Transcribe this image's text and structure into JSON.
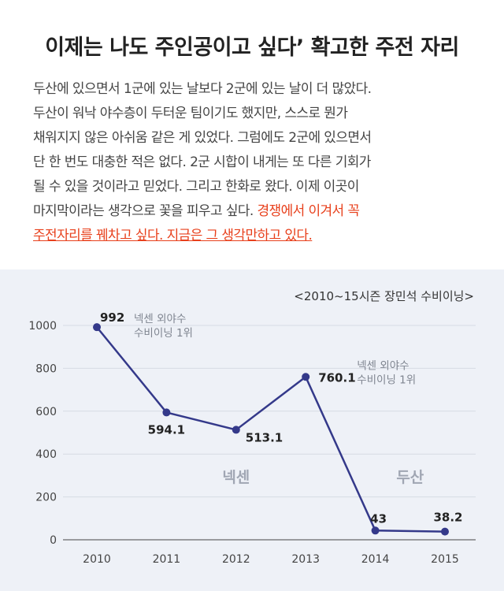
{
  "headline": "이제는 나도 주인공이고 싶다’ 확고한 주전 자리",
  "quote_lines": [
    "두산에 있으면서 1군에 있는 날보다 2군에 있는 날이 더 많았다.",
    "두산이 워낙 야수층이 두터운 팀이기도 했지만, 스스로 뭔가",
    "채워지지 않은 아쉬움 같은 게 있었다.  그럼에도 2군에 있으면서",
    "단 한 번도 대충한 적은 없다. 2군 시합이 내게는 또 다른 기회가",
    "될 수 있을 것이라고 믿었다.  그리고 한화로 왔다. 이제 이곳이"
  ],
  "quote_line6_plain": "마지막이라는 생각으로 꽃을 피우고 싶다. ",
  "quote_line6_highlight": "경쟁에서 이겨서 꼭",
  "quote_line7_highlight": "주전자리를 꿰차고 싶다. 지금은 그 생각만하고 있다.",
  "colors": {
    "line": "#34398a",
    "highlight": "#e8401c",
    "team_label": "#a0a6b3",
    "background": "#eef1f7"
  },
  "chart_data": {
    "type": "line",
    "title": "<2010~15시즌 장민석 수비이닝>",
    "xlabel": "",
    "ylabel": "",
    "categories": [
      "2010",
      "2011",
      "2012",
      "2013",
      "2014",
      "2015"
    ],
    "values": [
      992,
      594.1,
      513.1,
      760.1,
      43,
      38.2
    ],
    "value_labels": [
      "992",
      "594.1",
      "513.1",
      "760.1",
      "43",
      "38.2"
    ],
    "ylim": [
      0,
      1000
    ],
    "yticks": [
      0,
      200,
      400,
      600,
      800,
      1000
    ],
    "grid": true,
    "annotations": [
      {
        "index": 0,
        "lines": [
          "넥센 외야수",
          "수비이닝 1위"
        ]
      },
      {
        "index": 3,
        "lines": [
          "넥센 외야수",
          "수비이닝 1위"
        ]
      }
    ],
    "team_labels": [
      {
        "text": "넥센",
        "center_x": 2
      },
      {
        "text": "두산",
        "center_x": 4.5
      }
    ]
  }
}
